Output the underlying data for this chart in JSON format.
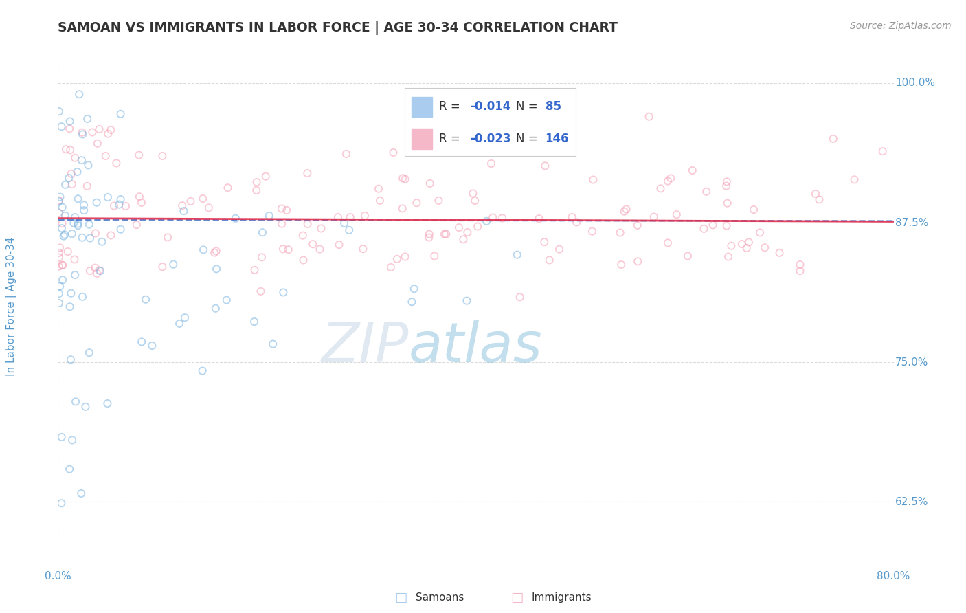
{
  "title": "SAMOAN VS IMMIGRANTS IN LABOR FORCE | AGE 30-34 CORRELATION CHART",
  "source_text": "Source: ZipAtlas.com",
  "ylabel": "In Labor Force | Age 30-34",
  "xmin": 0.0,
  "xmax": 0.8,
  "ymin": 0.575,
  "ymax": 1.025,
  "yticks": [
    0.625,
    0.75,
    0.875,
    1.0
  ],
  "ytick_labels": [
    "62.5%",
    "75.0%",
    "87.5%",
    "100.0%"
  ],
  "xtick_labels": [
    "0.0%",
    "80.0%"
  ],
  "blue_color": "#7ab3e0",
  "pink_color": "#f4a0b5",
  "blue_line_color": "#4477cc",
  "pink_line_color": "#e03050",
  "grid_color": "#cccccc",
  "background_color": "#ffffff",
  "title_color": "#333333",
  "axis_label_color": "#5599cc",
  "tick_color": "#5599cc",
  "source_color": "#999999",
  "watermark_color": "#ddeeff",
  "dot_size": 55,
  "dot_alpha": 0.55,
  "watermark": "ZIPatlas"
}
